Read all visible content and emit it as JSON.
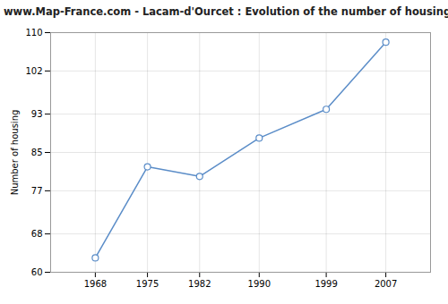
{
  "chart_data": {
    "type": "line",
    "title": "www.Map-France.com - Lacam-d'Ourcet : Evolution of the number of housing",
    "ylabel": "Number of housing",
    "x": [
      1968,
      1975,
      1982,
      1990,
      1999,
      2007
    ],
    "values": [
      63,
      82,
      80,
      88,
      94,
      108
    ],
    "color": "#5b8dc8",
    "marker": "circle",
    "xlim": [
      1962,
      2013
    ],
    "xticks": [
      1968,
      1975,
      1982,
      1990,
      1999,
      2007
    ],
    "ylim": [
      60,
      110
    ],
    "yticks": [
      60,
      68,
      77,
      85,
      93,
      102,
      110
    ],
    "grid": true
  }
}
